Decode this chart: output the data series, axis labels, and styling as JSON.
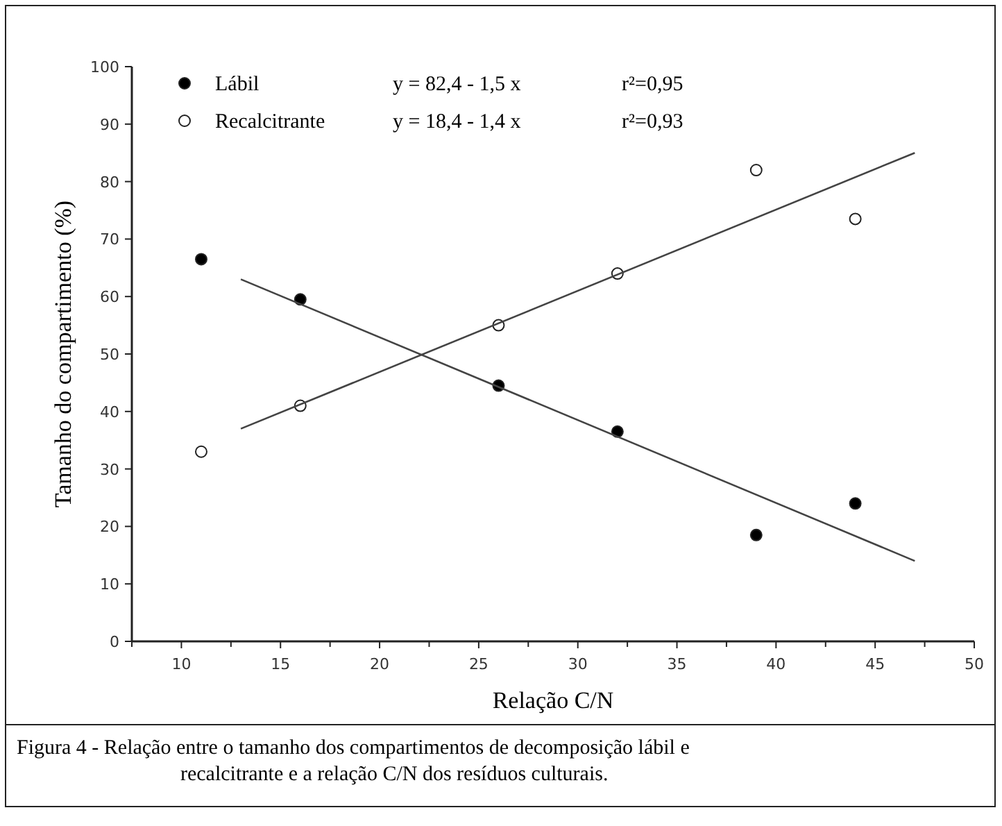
{
  "chart_data": {
    "type": "scatter",
    "xlabel": "Relação C/N",
    "ylabel": "Tamanho do compartimento (%)",
    "xlim": [
      7.5,
      50
    ],
    "xticks": [
      {
        "value": 7.5,
        "label": null
      },
      10,
      {
        "value": 12.5,
        "label": null
      },
      15,
      {
        "value": 17.5,
        "label": null
      },
      20,
      {
        "value": 22.5,
        "label": null
      },
      25,
      {
        "value": 27.5,
        "label": null
      },
      30,
      {
        "value": 32.5,
        "label": null
      },
      35,
      {
        "value": 37.5,
        "label": null
      },
      40,
      {
        "value": 42.5,
        "label": null
      },
      45,
      {
        "value": 47.5,
        "label": null
      },
      50
    ],
    "ylim": [
      0,
      100
    ],
    "yticks": [
      0,
      10,
      20,
      30,
      40,
      50,
      60,
      70,
      80,
      90,
      100
    ],
    "legend": "top left",
    "marker": "circle",
    "grid": false,
    "series": [
      {
        "name": "Lábil",
        "color": "#000000",
        "x": [
          11,
          16,
          26,
          32,
          39,
          44
        ],
        "values": [
          66.5,
          59.5,
          44.5,
          36.5,
          18.5,
          24
        ]
      },
      {
        "name": "Recalcitrante",
        "color": "#ffffff",
        "x": [
          11,
          16,
          26,
          32,
          39,
          44
        ],
        "values": [
          33,
          41,
          55,
          64,
          82,
          73.5
        ]
      },
      {
        "type": "line",
        "marker": "none",
        "color": "#444444",
        "x": [
          13,
          47
        ],
        "values": [
          63,
          14
        ]
      },
      {
        "type": "line",
        "marker": "none",
        "color": "#444444",
        "x": [
          13,
          47
        ],
        "values": [
          37,
          85
        ]
      }
    ],
    "annotations": [
      "y = 82,4 - 1,5 x",
      "r²=0,95",
      "y = 18,4 - 1,4 x",
      "r²=0,93",
      "Figura 4 - Relação entre o tamanho dos compartimentos de decomposição lábil e",
      "recalcitrante e a relação C/N dos resíduos culturais."
    ]
  }
}
